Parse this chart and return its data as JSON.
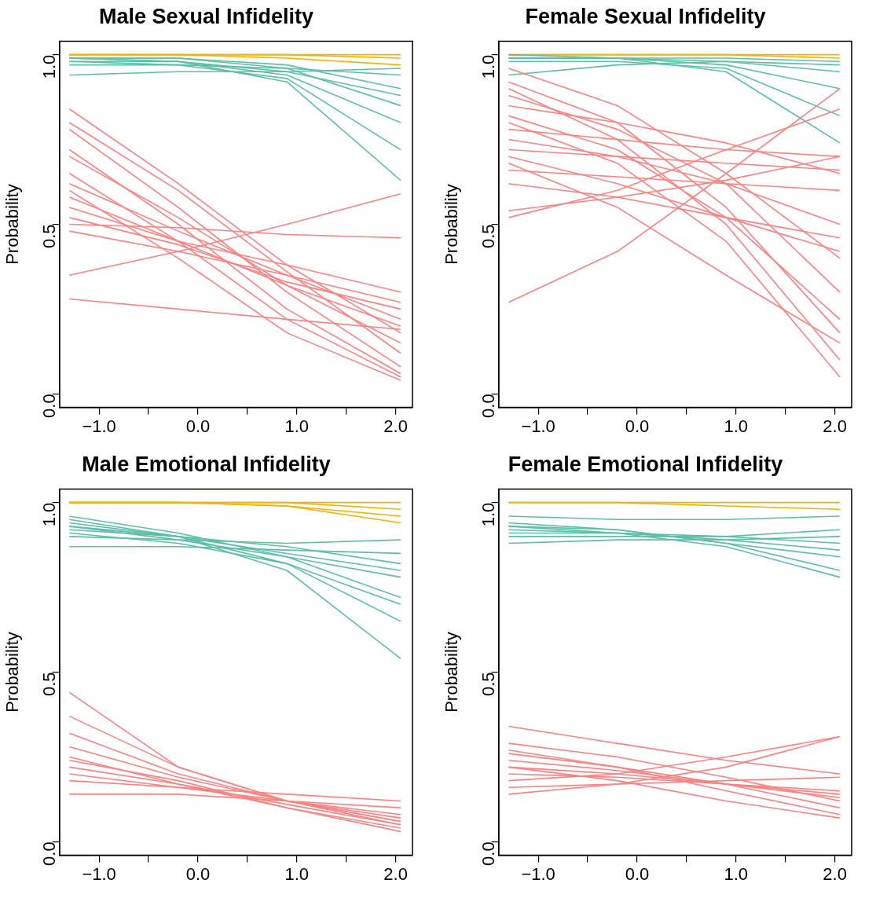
{
  "chart_data": [
    {
      "type": "line",
      "title": "Male Sexual Infidelity",
      "ylabel": "Probability",
      "marker": "none",
      "line_style": "solid",
      "x": [
        -1.3,
        -0.2,
        0.9,
        2.05
      ],
      "xlim": [
        -1.4,
        2.17
      ],
      "ylim": [
        -0.04,
        1.04
      ],
      "xticks": [
        {
          "value": -1,
          "label": "−1.0"
        },
        {
          "value": -0.5,
          "label": null
        },
        {
          "value": 0,
          "label": "0.0"
        },
        {
          "value": 0.5,
          "label": null
        },
        {
          "value": 1,
          "label": "1.0"
        },
        {
          "value": 1.5,
          "label": null
        },
        {
          "value": 2,
          "label": "2.0"
        }
      ],
      "yticks": [
        {
          "value": 0,
          "label": "0.0"
        },
        {
          "value": 0.5,
          "label": "0.5"
        },
        {
          "value": 1,
          "label": "1.0"
        }
      ],
      "series": [
        {
          "color": "#ff8080",
          "values": [
            0.84,
            0.62,
            0.38,
            0.18
          ]
        },
        {
          "color": "#ff8080",
          "values": [
            0.8,
            0.6,
            0.36,
            0.12
          ]
        },
        {
          "color": "#ff8080",
          "values": [
            0.78,
            0.55,
            0.3,
            0.08
          ]
        },
        {
          "color": "#ff8080",
          "values": [
            0.72,
            0.5,
            0.25,
            0.06
          ]
        },
        {
          "color": "#ff8080",
          "values": [
            0.7,
            0.52,
            0.32,
            0.15
          ]
        },
        {
          "color": "#ff8080",
          "values": [
            0.65,
            0.45,
            0.22,
            0.05
          ]
        },
        {
          "color": "#ff8080",
          "values": [
            0.62,
            0.48,
            0.35,
            0.22
          ]
        },
        {
          "color": "#ff8080",
          "values": [
            0.58,
            0.45,
            0.32,
            0.2
          ]
        },
        {
          "color": "#ff8080",
          "values": [
            0.55,
            0.45,
            0.38,
            0.3
          ]
        },
        {
          "color": "#ff8080",
          "values": [
            0.52,
            0.44,
            0.33,
            0.25
          ]
        },
        {
          "color": "#ff8080",
          "values": [
            0.48,
            0.42,
            0.35,
            0.27
          ]
        },
        {
          "color": "#ff8080",
          "values": [
            0.35,
            0.42,
            0.5,
            0.59
          ]
        },
        {
          "color": "#ff8080",
          "values": [
            0.28,
            0.25,
            0.22,
            0.19
          ]
        },
        {
          "color": "#ff8080",
          "values": [
            0.5,
            0.49,
            0.47,
            0.46
          ]
        },
        {
          "color": "#ff8080",
          "values": [
            0.6,
            0.4,
            0.18,
            0.04
          ]
        },
        {
          "color": "#5cbfa8",
          "values": [
            0.99,
            0.98,
            0.94,
            0.8
          ]
        },
        {
          "color": "#5cbfa8",
          "values": [
            0.99,
            0.98,
            0.92,
            0.63
          ]
        },
        {
          "color": "#5cbfa8",
          "values": [
            0.98,
            0.97,
            0.93,
            0.72
          ]
        },
        {
          "color": "#5cbfa8",
          "values": [
            0.99,
            0.99,
            0.97,
            0.9
          ]
        },
        {
          "color": "#5cbfa8",
          "values": [
            0.97,
            0.97,
            0.96,
            0.94
          ]
        },
        {
          "color": "#5cbfa8",
          "values": [
            0.94,
            0.95,
            0.95,
            0.96
          ]
        },
        {
          "color": "#5cbfa8",
          "values": [
            0.99,
            0.99,
            0.96,
            0.85
          ]
        },
        {
          "color": "#5cbfa8",
          "values": [
            0.98,
            0.98,
            0.95,
            0.88
          ]
        },
        {
          "color": "#f5b000",
          "values": [
            1,
            1,
            1,
            0.99
          ]
        },
        {
          "color": "#f5b000",
          "values": [
            1,
            1,
            0.99,
            0.97
          ]
        },
        {
          "color": "#f5b000",
          "values": [
            1,
            1,
            1,
            1
          ]
        }
      ]
    },
    {
      "type": "line",
      "title": "Female Sexual Infidelity",
      "ylabel": "Probability",
      "marker": "none",
      "line_style": "solid",
      "x": [
        -1.3,
        -0.2,
        0.9,
        2.05
      ],
      "xlim": [
        -1.4,
        2.17
      ],
      "ylim": [
        -0.04,
        1.04
      ],
      "xticks": [
        {
          "value": -1,
          "label": "−1.0"
        },
        {
          "value": -0.5,
          "label": null
        },
        {
          "value": 0,
          "label": "0.0"
        },
        {
          "value": 0.5,
          "label": null
        },
        {
          "value": 1,
          "label": "1.0"
        },
        {
          "value": 1.5,
          "label": null
        },
        {
          "value": 2,
          "label": "2.0"
        }
      ],
      "yticks": [
        {
          "value": 0,
          "label": "0.0"
        },
        {
          "value": 0.5,
          "label": "0.5"
        },
        {
          "value": 1,
          "label": "1.0"
        }
      ],
      "series": [
        {
          "color": "#ff8080",
          "values": [
            0.96,
            0.85,
            0.65,
            0.4
          ]
        },
        {
          "color": "#ff8080",
          "values": [
            0.92,
            0.8,
            0.55,
            0.18
          ]
        },
        {
          "color": "#ff8080",
          "values": [
            0.9,
            0.75,
            0.5,
            0.1
          ]
        },
        {
          "color": "#ff8080",
          "values": [
            0.88,
            0.78,
            0.62,
            0.3
          ]
        },
        {
          "color": "#ff8080",
          "values": [
            0.85,
            0.8,
            0.74,
            0.65
          ]
        },
        {
          "color": "#ff8080",
          "values": [
            0.82,
            0.72,
            0.52,
            0.22
          ]
        },
        {
          "color": "#ff8080",
          "values": [
            0.8,
            0.68,
            0.45,
            0.05
          ]
        },
        {
          "color": "#ff8080",
          "values": [
            0.78,
            0.75,
            0.72,
            0.7
          ]
        },
        {
          "color": "#ff8080",
          "values": [
            0.75,
            0.7,
            0.62,
            0.5
          ]
        },
        {
          "color": "#ff8080",
          "values": [
            0.72,
            0.7,
            0.68,
            0.66
          ]
        },
        {
          "color": "#ff8080",
          "values": [
            0.7,
            0.62,
            0.52,
            0.42
          ]
        },
        {
          "color": "#ff8080",
          "values": [
            0.66,
            0.64,
            0.62,
            0.6
          ]
        },
        {
          "color": "#ff8080",
          "values": [
            0.62,
            0.58,
            0.52,
            0.46
          ]
        },
        {
          "color": "#ff8080",
          "values": [
            0.54,
            0.58,
            0.63,
            0.7
          ]
        },
        {
          "color": "#ff8080",
          "values": [
            0.52,
            0.6,
            0.72,
            0.84
          ]
        },
        {
          "color": "#ff8080",
          "values": [
            0.27,
            0.42,
            0.65,
            0.9
          ]
        },
        {
          "color": "#ff8080",
          "values": [
            0.68,
            0.55,
            0.35,
            0.15
          ]
        },
        {
          "color": "#5cbfa8",
          "values": [
            0.99,
            0.99,
            0.97,
            0.9
          ]
        },
        {
          "color": "#5cbfa8",
          "values": [
            0.99,
            0.99,
            0.95,
            0.74
          ]
        },
        {
          "color": "#5cbfa8",
          "values": [
            0.94,
            0.97,
            0.98,
            0.97
          ]
        },
        {
          "color": "#5cbfa8",
          "values": [
            0.99,
            0.99,
            0.98,
            0.95
          ]
        },
        {
          "color": "#5cbfa8",
          "values": [
            0.98,
            0.98,
            0.96,
            0.82
          ]
        },
        {
          "color": "#5cbfa8",
          "values": [
            1,
            0.99,
            0.99,
            0.98
          ]
        },
        {
          "color": "#f5b000",
          "values": [
            1,
            1,
            1,
            1
          ]
        },
        {
          "color": "#f5b000",
          "values": [
            1,
            1,
            1,
            0.99
          ]
        }
      ]
    },
    {
      "type": "line",
      "title": "Male Emotional Infidelity",
      "ylabel": "Probability",
      "marker": "none",
      "line_style": "solid",
      "x": [
        -1.3,
        -0.2,
        0.9,
        2.05
      ],
      "xlim": [
        -1.4,
        2.17
      ],
      "ylim": [
        -0.04,
        1.04
      ],
      "xticks": [
        {
          "value": -1,
          "label": "−1.0"
        },
        {
          "value": -0.5,
          "label": null
        },
        {
          "value": 0,
          "label": "0.0"
        },
        {
          "value": 0.5,
          "label": null
        },
        {
          "value": 1,
          "label": "1.0"
        },
        {
          "value": 1.5,
          "label": null
        },
        {
          "value": 2,
          "label": "2.0"
        }
      ],
      "yticks": [
        {
          "value": 0,
          "label": "0.0"
        },
        {
          "value": 0.5,
          "label": "0.5"
        },
        {
          "value": 1,
          "label": "1.0"
        }
      ],
      "series": [
        {
          "color": "#ff8080",
          "values": [
            0.44,
            0.22,
            0.12,
            0.06
          ]
        },
        {
          "color": "#ff8080",
          "values": [
            0.37,
            0.22,
            0.12,
            0.05
          ]
        },
        {
          "color": "#ff8080",
          "values": [
            0.32,
            0.2,
            0.12,
            0.06
          ]
        },
        {
          "color": "#ff8080",
          "values": [
            0.28,
            0.19,
            0.12,
            0.07
          ]
        },
        {
          "color": "#ff8080",
          "values": [
            0.25,
            0.17,
            0.1,
            0.04
          ]
        },
        {
          "color": "#ff8080",
          "values": [
            0.22,
            0.17,
            0.11,
            0.05
          ]
        },
        {
          "color": "#ff8080",
          "values": [
            0.18,
            0.16,
            0.14,
            0.12
          ]
        },
        {
          "color": "#ff8080",
          "values": [
            0.14,
            0.14,
            0.12,
            0.1
          ]
        },
        {
          "color": "#ff8080",
          "values": [
            0.24,
            0.18,
            0.1,
            0.03
          ]
        },
        {
          "color": "#ff8080",
          "values": [
            0.2,
            0.16,
            0.12,
            0.08
          ]
        },
        {
          "color": "#5cbfa8",
          "values": [
            0.96,
            0.91,
            0.84,
            0.72
          ]
        },
        {
          "color": "#5cbfa8",
          "values": [
            0.95,
            0.9,
            0.8,
            0.54
          ]
        },
        {
          "color": "#5cbfa8",
          "values": [
            0.93,
            0.89,
            0.84,
            0.78
          ]
        },
        {
          "color": "#5cbfa8",
          "values": [
            0.92,
            0.9,
            0.87,
            0.82
          ]
        },
        {
          "color": "#5cbfa8",
          "values": [
            0.9,
            0.89,
            0.88,
            0.89
          ]
        },
        {
          "color": "#5cbfa8",
          "values": [
            0.87,
            0.87,
            0.86,
            0.85
          ]
        },
        {
          "color": "#5cbfa8",
          "values": [
            0.94,
            0.9,
            0.82,
            0.65
          ]
        },
        {
          "color": "#5cbfa8",
          "values": [
            0.93,
            0.9,
            0.85,
            0.8
          ]
        },
        {
          "color": "#5cbfa8",
          "values": [
            0.91,
            0.88,
            0.82,
            0.7
          ]
        },
        {
          "color": "#f5b000",
          "values": [
            1,
            1,
            1,
            1
          ]
        },
        {
          "color": "#f5b000",
          "values": [
            1,
            1,
            0.99,
            0.96
          ]
        },
        {
          "color": "#f5b000",
          "values": [
            1,
            1,
            0.99,
            0.94
          ]
        },
        {
          "color": "#f5b000",
          "values": [
            1,
            1,
            1,
            0.98
          ]
        }
      ]
    },
    {
      "type": "line",
      "title": "Female Emotional Infidelity",
      "ylabel": "Probability",
      "marker": "none",
      "line_style": "solid",
      "x": [
        -1.3,
        -0.2,
        0.9,
        2.05
      ],
      "xlim": [
        -1.4,
        2.17
      ],
      "ylim": [
        -0.04,
        1.04
      ],
      "xticks": [
        {
          "value": -1,
          "label": "−1.0"
        },
        {
          "value": -0.5,
          "label": null
        },
        {
          "value": 0,
          "label": "0.0"
        },
        {
          "value": 0.5,
          "label": null
        },
        {
          "value": 1,
          "label": "1.0"
        },
        {
          "value": 1.5,
          "label": null
        },
        {
          "value": 2,
          "label": "2.0"
        }
      ],
      "yticks": [
        {
          "value": 0,
          "label": "0.0"
        },
        {
          "value": 0.5,
          "label": "0.5"
        },
        {
          "value": 1,
          "label": "1.0"
        }
      ],
      "series": [
        {
          "color": "#ff8080",
          "values": [
            0.34,
            0.29,
            0.24,
            0.2
          ]
        },
        {
          "color": "#ff8080",
          "values": [
            0.29,
            0.25,
            0.19,
            0.12
          ]
        },
        {
          "color": "#ff8080",
          "values": [
            0.27,
            0.22,
            0.15,
            0.08
          ]
        },
        {
          "color": "#ff8080",
          "values": [
            0.24,
            0.21,
            0.17,
            0.13
          ]
        },
        {
          "color": "#ff8080",
          "values": [
            0.22,
            0.2,
            0.17,
            0.14
          ]
        },
        {
          "color": "#ff8080",
          "values": [
            0.2,
            0.19,
            0.17,
            0.15
          ]
        },
        {
          "color": "#ff8080",
          "values": [
            0.18,
            0.2,
            0.25,
            0.31
          ]
        },
        {
          "color": "#ff8080",
          "values": [
            0.16,
            0.17,
            0.18,
            0.19
          ]
        },
        {
          "color": "#ff8080",
          "values": [
            0.14,
            0.17,
            0.22,
            0.31
          ]
        },
        {
          "color": "#ff8080",
          "values": [
            0.22,
            0.18,
            0.12,
            0.07
          ]
        },
        {
          "color": "#ff8080",
          "values": [
            0.26,
            0.22,
            0.17,
            0.1
          ]
        },
        {
          "color": "#5cbfa8",
          "values": [
            0.96,
            0.95,
            0.95,
            0.96
          ]
        },
        {
          "color": "#5cbfa8",
          "values": [
            0.94,
            0.92,
            0.88,
            0.8
          ]
        },
        {
          "color": "#5cbfa8",
          "values": [
            0.93,
            0.91,
            0.87,
            0.78
          ]
        },
        {
          "color": "#5cbfa8",
          "values": [
            0.92,
            0.91,
            0.9,
            0.88
          ]
        },
        {
          "color": "#5cbfa8",
          "values": [
            0.9,
            0.9,
            0.9,
            0.92
          ]
        },
        {
          "color": "#5cbfa8",
          "values": [
            0.88,
            0.89,
            0.89,
            0.9
          ]
        },
        {
          "color": "#5cbfa8",
          "values": [
            0.93,
            0.92,
            0.88,
            0.84
          ]
        },
        {
          "color": "#5cbfa8",
          "values": [
            0.91,
            0.91,
            0.89,
            0.86
          ]
        },
        {
          "color": "#f5b000",
          "values": [
            1,
            1,
            1,
            1
          ]
        },
        {
          "color": "#f5b000",
          "values": [
            1,
            1,
            0.99,
            0.98
          ]
        }
      ]
    }
  ]
}
